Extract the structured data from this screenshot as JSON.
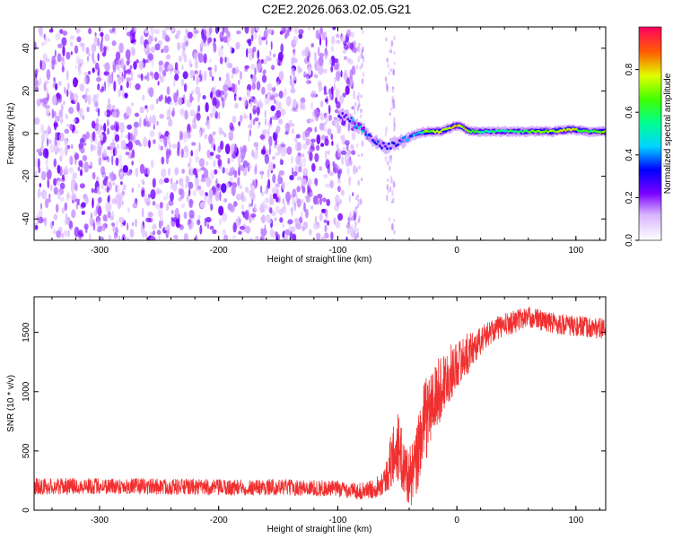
{
  "title": "C2E2.2026.063.02.05.G21",
  "chart_data": [
    {
      "type": "heatmap",
      "xlabel": "Height of straight line (km)",
      "ylabel": "Frequency (Hz)",
      "xlim": [
        -355,
        125
      ],
      "ylim": [
        -50,
        50
      ],
      "xticks": [
        -300,
        -200,
        -100,
        0,
        100
      ],
      "yticks": [
        -40,
        -20,
        0,
        20,
        40
      ],
      "colorbar": {
        "label": "Normalized spectral amplitude",
        "range": [
          0,
          1
        ],
        "ticks": [
          0.0,
          0.2,
          0.4,
          0.6,
          0.8
        ]
      },
      "noise_region_x": [
        -355,
        -85
      ],
      "noise_level": 0.1,
      "signal_track": [
        {
          "x": -100,
          "y": 9,
          "amp": 0.3
        },
        {
          "x": -93,
          "y": 8,
          "amp": 0.25
        },
        {
          "x": -86,
          "y": 4,
          "amp": 0.45
        },
        {
          "x": -80,
          "y": 2,
          "amp": 0.5
        },
        {
          "x": -74,
          "y": -2,
          "amp": 0.3
        },
        {
          "x": -67,
          "y": -5,
          "amp": 0.35
        },
        {
          "x": -60,
          "y": -6,
          "amp": 0.3
        },
        {
          "x": -52,
          "y": -5,
          "amp": 0.3
        },
        {
          "x": -45,
          "y": -3,
          "amp": 0.35
        },
        {
          "x": -35,
          "y": 0,
          "amp": 0.45
        },
        {
          "x": -25,
          "y": 1,
          "amp": 0.7
        },
        {
          "x": -15,
          "y": 1,
          "amp": 0.75
        },
        {
          "x": -5,
          "y": 3,
          "amp": 0.75
        },
        {
          "x": 0,
          "y": 4,
          "amp": 0.8
        },
        {
          "x": 10,
          "y": 1,
          "amp": 0.7
        },
        {
          "x": 20,
          "y": 1,
          "amp": 0.55
        },
        {
          "x": 40,
          "y": 1,
          "amp": 0.55
        },
        {
          "x": 60,
          "y": 1,
          "amp": 0.6
        },
        {
          "x": 80,
          "y": 1,
          "amp": 0.75
        },
        {
          "x": 95,
          "y": 2,
          "amp": 0.8
        },
        {
          "x": 110,
          "y": 1,
          "amp": 0.55
        },
        {
          "x": 125,
          "y": 1,
          "amp": 0.7
        }
      ]
    },
    {
      "type": "line",
      "xlabel": "Height of straight line (km)",
      "ylabel": "SNR (10 * v/v)",
      "xlim": [
        -355,
        125
      ],
      "ylim": [
        0,
        1800
      ],
      "xticks": [
        -300,
        -200,
        -100,
        0,
        100
      ],
      "yticks": [
        0,
        500,
        1000,
        1500
      ],
      "color": "#f03030",
      "series": [
        {
          "x": [
            -355,
            -300,
            -250,
            -200,
            -150,
            -100,
            -80,
            -70,
            -60,
            -55,
            -50,
            -45,
            -40,
            -35,
            -30,
            -25,
            -20,
            -10,
            0,
            10,
            20,
            30,
            40,
            50,
            60,
            80,
            100,
            125
          ],
          "y": [
            200,
            205,
            200,
            190,
            195,
            180,
            160,
            180,
            260,
            420,
            550,
            380,
            280,
            330,
            650,
            800,
            900,
            1100,
            1230,
            1330,
            1430,
            1520,
            1560,
            1600,
            1630,
            1580,
            1550,
            1530
          ],
          "spread": [
            70,
            70,
            70,
            70,
            70,
            70,
            70,
            80,
            120,
            250,
            300,
            250,
            250,
            300,
            350,
            350,
            320,
            260,
            200,
            170,
            120,
            100,
            100,
            100,
            90,
            90,
            90,
            90
          ]
        }
      ]
    }
  ]
}
